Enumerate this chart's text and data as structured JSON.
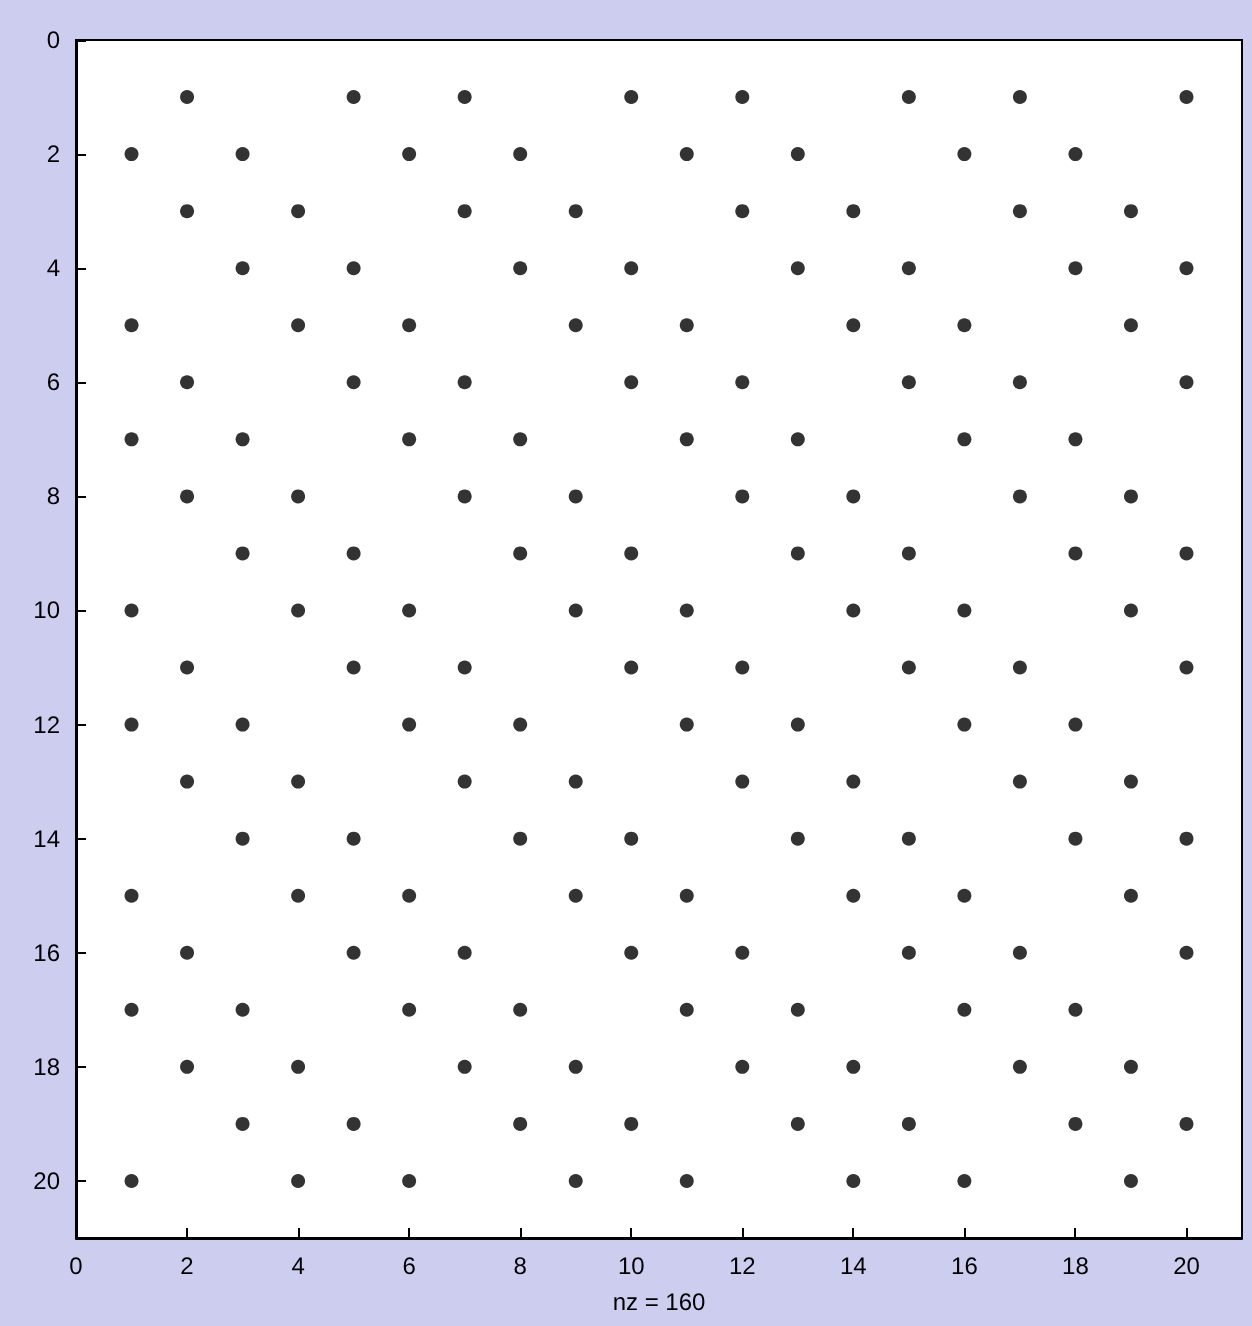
{
  "chart_data": {
    "type": "scatter",
    "xlabel": "nz = 160",
    "xlim": [
      0,
      21
    ],
    "ylim": [
      21,
      0
    ],
    "xticks": [
      0,
      2,
      4,
      6,
      8,
      10,
      12,
      14,
      16,
      18,
      20
    ],
    "yticks": [
      0,
      2,
      4,
      6,
      8,
      10,
      12,
      14,
      16,
      18,
      20
    ],
    "grid": false,
    "marker": "circle",
    "series": [
      {
        "color": "#000000",
        "x": [
          2,
          5,
          7,
          10,
          12,
          15,
          17,
          20,
          1,
          3,
          6,
          8,
          11,
          13,
          16,
          18,
          2,
          4,
          7,
          9,
          12,
          14,
          17,
          19,
          3,
          5,
          8,
          10,
          13,
          15,
          18,
          20,
          1,
          4,
          6,
          9,
          11,
          14,
          16,
          19,
          2,
          5,
          7,
          10,
          12,
          15,
          17,
          20,
          1,
          3,
          6,
          8,
          11,
          13,
          16,
          18,
          2,
          4,
          7,
          9,
          12,
          14,
          17,
          19,
          3,
          5,
          8,
          10,
          13,
          15,
          18,
          20,
          1,
          4,
          6,
          9,
          11,
          14,
          16,
          19,
          2,
          5,
          7,
          10,
          12,
          15,
          17,
          20,
          1,
          3,
          6,
          8,
          11,
          13,
          16,
          18,
          2,
          4,
          7,
          9,
          12,
          14,
          17,
          19,
          3,
          5,
          8,
          10,
          13,
          15,
          18,
          20,
          1,
          4,
          6,
          9,
          11,
          14,
          16,
          19,
          2,
          5,
          7,
          10,
          12,
          15,
          17,
          20,
          1,
          3,
          6,
          8,
          11,
          13,
          16,
          18,
          2,
          4,
          7,
          9,
          12,
          14,
          17,
          19,
          3,
          5,
          8,
          10,
          13,
          15,
          18,
          20,
          1,
          4,
          6,
          9,
          11,
          14,
          16,
          19
        ],
        "values": [
          1,
          1,
          1,
          1,
          1,
          1,
          1,
          1,
          2,
          2,
          2,
          2,
          2,
          2,
          2,
          2,
          3,
          3,
          3,
          3,
          3,
          3,
          3,
          3,
          4,
          4,
          4,
          4,
          4,
          4,
          4,
          4,
          5,
          5,
          5,
          5,
          5,
          5,
          5,
          5,
          6,
          6,
          6,
          6,
          6,
          6,
          6,
          6,
          7,
          7,
          7,
          7,
          7,
          7,
          7,
          7,
          8,
          8,
          8,
          8,
          8,
          8,
          8,
          8,
          9,
          9,
          9,
          9,
          9,
          9,
          9,
          9,
          10,
          10,
          10,
          10,
          10,
          10,
          10,
          10,
          11,
          11,
          11,
          11,
          11,
          11,
          11,
          11,
          12,
          12,
          12,
          12,
          12,
          12,
          12,
          12,
          13,
          13,
          13,
          13,
          13,
          13,
          13,
          13,
          14,
          14,
          14,
          14,
          14,
          14,
          14,
          14,
          15,
          15,
          15,
          15,
          15,
          15,
          15,
          15,
          16,
          16,
          16,
          16,
          16,
          16,
          16,
          16,
          17,
          17,
          17,
          17,
          17,
          17,
          17,
          17,
          18,
          18,
          18,
          18,
          18,
          18,
          18,
          18,
          19,
          19,
          19,
          19,
          19,
          19,
          19,
          19,
          20,
          20,
          20,
          20,
          20,
          20,
          20,
          20
        ]
      }
    ]
  }
}
